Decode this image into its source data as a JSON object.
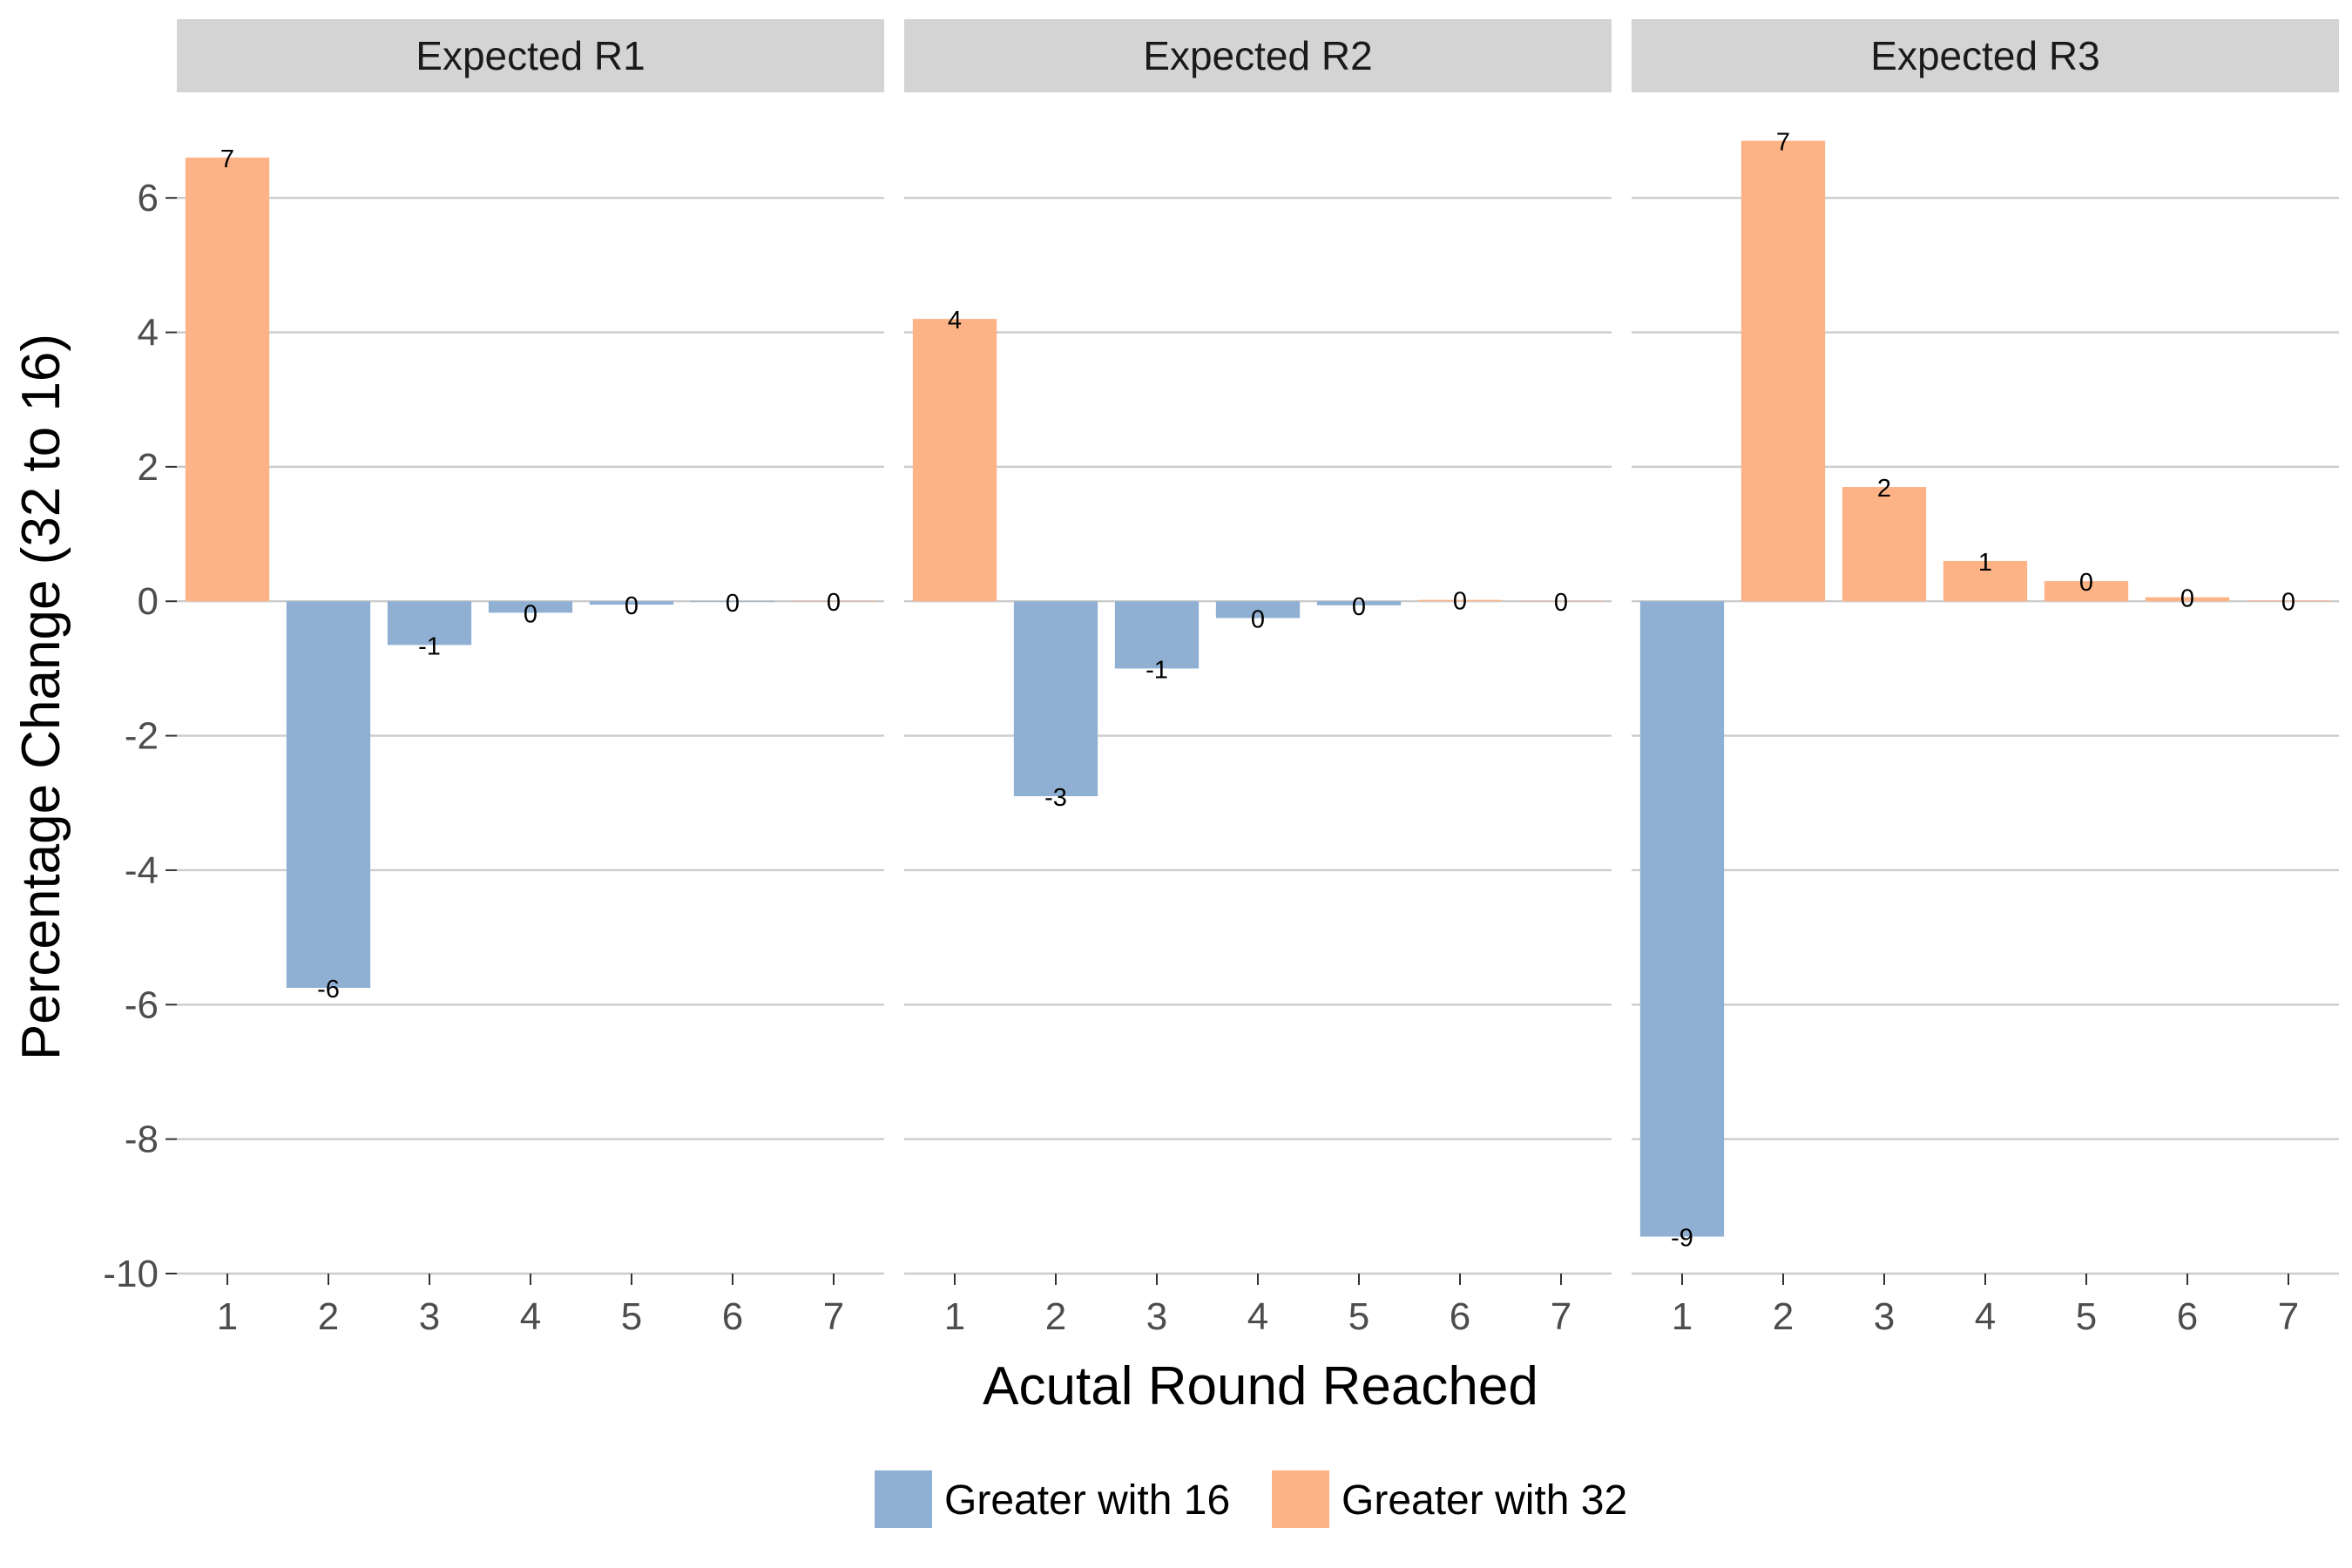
{
  "chart_data": {
    "type": "bar",
    "facets": [
      {
        "title": "Expected R1",
        "categories": [
          "1",
          "2",
          "3",
          "4",
          "5",
          "6",
          "7"
        ],
        "values": [
          6.6,
          -5.75,
          -0.65,
          -0.17,
          -0.05,
          -0.01,
          0.0
        ],
        "labels": [
          "7",
          "-6",
          "-1",
          "0",
          "0",
          "0",
          "0"
        ]
      },
      {
        "title": "Expected R2",
        "categories": [
          "1",
          "2",
          "3",
          "4",
          "5",
          "6",
          "7"
        ],
        "values": [
          4.2,
          -2.9,
          -1.0,
          -0.25,
          -0.06,
          0.02,
          0.0
        ],
        "labels": [
          "4",
          "-3",
          "-1",
          "0",
          "0",
          "0",
          "0"
        ]
      },
      {
        "title": "Expected R3",
        "categories": [
          "1",
          "2",
          "3",
          "4",
          "5",
          "6",
          "7"
        ],
        "values": [
          -9.45,
          6.85,
          1.7,
          0.6,
          0.3,
          0.06,
          0.01
        ],
        "labels": [
          "-9",
          "7",
          "2",
          "1",
          "0",
          "0",
          "0"
        ]
      }
    ],
    "xlabel": "Acutal Round Reached",
    "ylabel": "Percentage Change (32 to 16)",
    "ylim": [
      -10,
      7
    ],
    "yticks": [
      6,
      4,
      2,
      0,
      -2,
      -4,
      -6,
      -8,
      -10
    ],
    "grid": true,
    "legend": {
      "position": "bottom",
      "entries": [
        "Greater with 16",
        "Greater with 32"
      ]
    },
    "colors": {
      "negative": "#8fb0d3",
      "positive": "#fdb386",
      "strip": "#d4d4d4",
      "grid": "#cccccc"
    }
  }
}
